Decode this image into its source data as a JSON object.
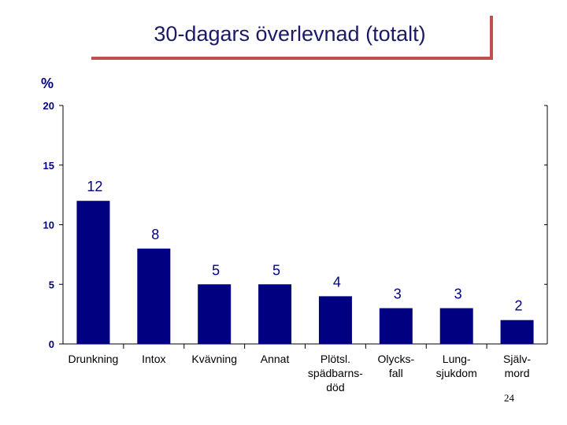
{
  "slide": {
    "title": "30-dagars överlevnad (totalt)",
    "page_number": "24",
    "accent_color": "#c0504d"
  },
  "chart_data": {
    "type": "bar",
    "title": "",
    "xlabel": "",
    "ylabel": "%",
    "ylim": [
      0,
      20
    ],
    "yticks": [
      0,
      5,
      10,
      15,
      20
    ],
    "grid": false,
    "legend": "none",
    "bar_color": "#000080",
    "categories": [
      [
        "Drunkning"
      ],
      [
        "Intox"
      ],
      [
        "Kvävning"
      ],
      [
        "Annat"
      ],
      [
        "Plötsl.",
        "spädbarns-",
        "död"
      ],
      [
        "Olycks-",
        "fall"
      ],
      [
        "Lung-",
        "sjukdom"
      ],
      [
        "Själv-",
        "mord"
      ]
    ],
    "values": [
      12,
      8,
      5,
      5,
      4,
      3,
      3,
      2
    ]
  }
}
